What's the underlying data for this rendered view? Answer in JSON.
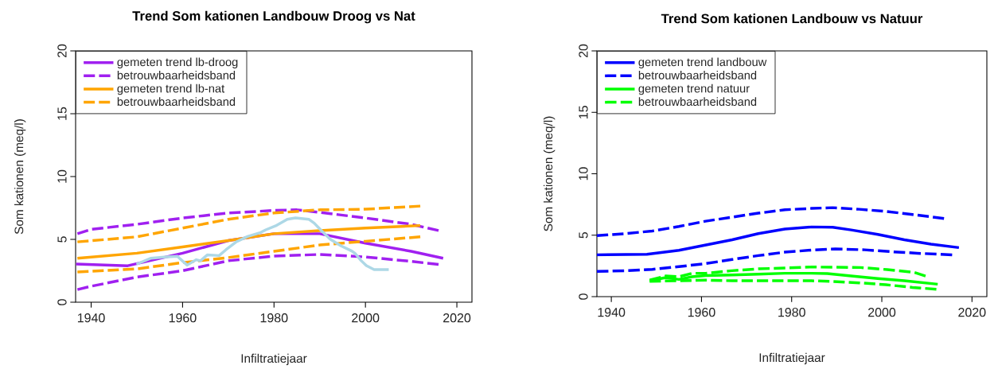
{
  "chart_data": [
    {
      "type": "line",
      "title": "Trend Som kationen Landbouw Droog vs Nat",
      "xlabel": "Infiltratiejaar",
      "ylabel": "Som kationen (meq/l)",
      "xlim": [
        1936.6,
        2023.3
      ],
      "ylim": [
        0,
        20
      ],
      "xticks": [
        1940,
        1960,
        1980,
        2000,
        2020
      ],
      "yticks": [
        0,
        5,
        10,
        15,
        20
      ],
      "legend": "top left",
      "grid": false,
      "series": [
        {
          "name": "gemeten trend lb-droog",
          "color": "#a020f0",
          "line_style": "solid",
          "x": [
            1936.7,
            1948,
            1960,
            1970,
            1980,
            1990,
            2000,
            2010,
            2017
          ],
          "values": [
            3.04,
            2.9,
            3.9,
            4.9,
            5.45,
            5.45,
            4.7,
            4.05,
            3.5
          ]
        },
        {
          "name": "betrouwbaarheidsband",
          "color": "#a020f0",
          "line_style": "dashed",
          "x": [
            1937,
            1940,
            1950,
            1960,
            1970,
            1980,
            1985,
            1990,
            2000,
            2010,
            2016
          ],
          "values": [
            5.45,
            5.8,
            6.2,
            6.7,
            7.1,
            7.3,
            7.35,
            7.15,
            6.7,
            6.2,
            5.7
          ]
        },
        {
          "color": "#a020f0",
          "line_style": "dashed",
          "x": [
            1937,
            1940,
            1950,
            1960,
            1970,
            1980,
            1990,
            2000,
            2010,
            2016
          ],
          "values": [
            1.0,
            1.27,
            2.0,
            2.5,
            3.3,
            3.67,
            3.8,
            3.6,
            3.25,
            3.0
          ]
        },
        {
          "name": "gemeten trend lb-nat",
          "color": "#ffa500",
          "line_style": "solid",
          "x": [
            1937,
            1950,
            1960,
            1970,
            1980,
            1990,
            2000,
            2012
          ],
          "values": [
            3.5,
            3.9,
            4.4,
            4.9,
            5.45,
            5.7,
            5.9,
            6.1
          ]
        },
        {
          "name": "betrouwbaarheidsband",
          "color": "#ffa500",
          "line_style": "dashed",
          "x": [
            1937,
            1950,
            1960,
            1970,
            1980,
            1990,
            2000,
            2012
          ],
          "values": [
            4.8,
            5.2,
            5.9,
            6.6,
            7.1,
            7.35,
            7.4,
            7.65
          ]
        },
        {
          "color": "#ffa500",
          "line_style": "dashed",
          "x": [
            1937,
            1950,
            1960,
            1970,
            1980,
            1990,
            2000,
            2012
          ],
          "values": [
            2.4,
            2.65,
            3.15,
            3.55,
            4.05,
            4.55,
            4.85,
            5.2
          ]
        },
        {
          "color": "#add8e6",
          "line_style": "solid",
          "x": [
            1949.9,
            1953.1,
            1956,
            1958.9,
            1959.5,
            1961,
            1963,
            1963.9,
            1965.4,
            1968,
            1969.5,
            1971.8,
            1974.2,
            1977.1,
            1978.2,
            1980.6,
            1982.9,
            1984.7,
            1987.6,
            1988.8,
            1990.5,
            1992.3,
            1994.6,
            1997,
            1997.8,
            1999,
            2000.2,
            2001.9,
            2005.1
          ],
          "values": [
            3.02,
            3.5,
            3.59,
            3.65,
            3.44,
            2.95,
            3.38,
            3.29,
            3.76,
            3.71,
            4.18,
            4.81,
            5.23,
            5.55,
            5.76,
            6.12,
            6.6,
            6.71,
            6.6,
            6.29,
            5.65,
            5.02,
            4.49,
            4.07,
            3.86,
            3.33,
            2.91,
            2.59,
            2.59
          ]
        }
      ]
    },
    {
      "type": "line",
      "title": "Trend Som kationen Landbouw vs Natuur",
      "xlabel": "Infiltratiejaar",
      "ylabel": "Som kationen (meq/l)",
      "xlim": [
        1936.8,
        2023.3
      ],
      "ylim": [
        0,
        20
      ],
      "xticks": [
        1940,
        1960,
        1980,
        2000,
        2020
      ],
      "yticks": [
        0,
        5,
        10,
        15,
        20
      ],
      "legend": "top left",
      "grid": false,
      "series": [
        {
          "name": "gemeten trend landbouw",
          "color": "#0000ff",
          "line_style": "solid",
          "x": [
            1936.8,
            1947.9,
            1955,
            1960.9,
            1966.8,
            1972.6,
            1978.5,
            1984.4,
            1989.1,
            1993.2,
            1999.1,
            2005,
            2010.9,
            2017.1
          ],
          "values": [
            3.4,
            3.45,
            3.77,
            4.2,
            4.63,
            5.13,
            5.5,
            5.67,
            5.65,
            5.43,
            5.06,
            4.63,
            4.27,
            3.99
          ]
        },
        {
          "name": "betrouwbaarheidsband",
          "color": "#0000ff",
          "line_style": "dashed",
          "x": [
            1936.8,
            1943.2,
            1949.1,
            1955,
            1960.9,
            1966.8,
            1972.6,
            1978.5,
            1984.4,
            1989.1,
            1995,
            2000.9,
            2006.8,
            2013.8
          ],
          "values": [
            4.96,
            5.13,
            5.34,
            5.71,
            6.14,
            6.47,
            6.79,
            7.07,
            7.18,
            7.24,
            7.11,
            6.94,
            6.68,
            6.36
          ]
        },
        {
          "color": "#0000ff",
          "line_style": "dashed",
          "x": [
            1936.8,
            1943.2,
            1949.1,
            1955,
            1960.9,
            1966.8,
            1972.6,
            1978.5,
            1984.4,
            1989.7,
            1996.2,
            2002,
            2007.9,
            2015.6
          ],
          "values": [
            2.05,
            2.11,
            2.22,
            2.44,
            2.69,
            3.02,
            3.34,
            3.62,
            3.79,
            3.88,
            3.81,
            3.66,
            3.53,
            3.4
          ]
        },
        {
          "name": "gemeten trend natuur",
          "color": "#00ff00",
          "line_style": "solid",
          "x": [
            1948.5,
            1952.1,
            1955,
            1957.9,
            1960.9,
            1966.8,
            1972.6,
            1978.5,
            1984.4,
            1987.9,
            1993.2,
            1999.1,
            2005,
            2012.4
          ],
          "values": [
            1.29,
            1.55,
            1.4,
            1.62,
            1.72,
            1.77,
            1.83,
            1.9,
            1.9,
            1.88,
            1.68,
            1.47,
            1.29,
            1.01
          ]
        },
        {
          "name": "betrouwbaarheidsband",
          "color": "#00ff00",
          "line_style": "dashed",
          "x": [
            1948.5,
            1952.1,
            1955,
            1957.9,
            1960.9,
            1966.8,
            1972.6,
            1978.5,
            1984.4,
            1995.3,
            2001.2,
            2007.1,
            2009.7
          ],
          "values": [
            1.34,
            1.68,
            1.62,
            1.9,
            1.9,
            2.11,
            2.26,
            2.33,
            2.41,
            2.37,
            2.2,
            1.98,
            1.68
          ]
        },
        {
          "color": "#00ff00",
          "line_style": "dashed",
          "x": [
            1948.5,
            1955,
            1960.9,
            1966.8,
            1972.6,
            1978.5,
            1984.4,
            1988.5,
            1995,
            2000.9,
            2006.8,
            2012.1
          ],
          "values": [
            1.25,
            1.29,
            1.34,
            1.29,
            1.29,
            1.29,
            1.29,
            1.25,
            1.12,
            0.97,
            0.75,
            0.6
          ]
        }
      ]
    }
  ]
}
